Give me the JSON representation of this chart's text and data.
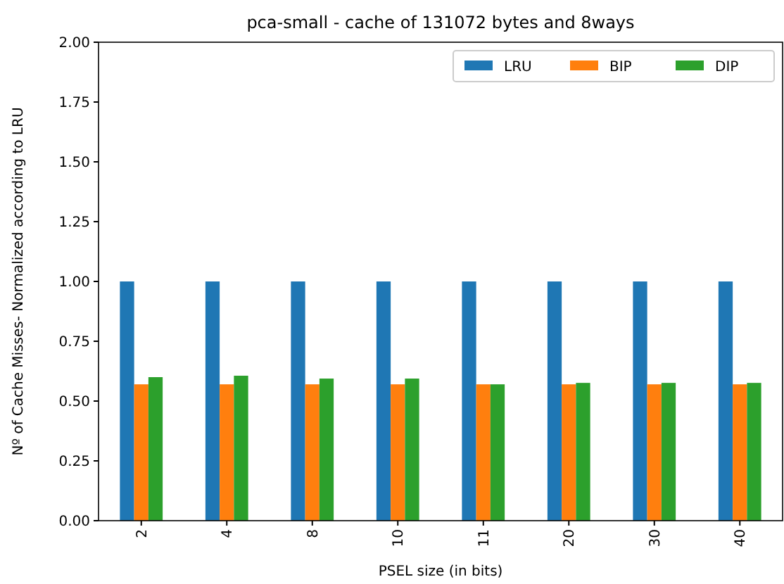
{
  "chart_data": {
    "type": "bar",
    "title": "pca-small - cache of 131072 bytes and 8ways",
    "xlabel": "PSEL size (in bits)",
    "ylabel": "Nº of Cache Misses- Normalized according to LRU",
    "categories": [
      "2",
      "4",
      "8",
      "10",
      "11",
      "20",
      "30",
      "40"
    ],
    "series": [
      {
        "name": "LRU",
        "color": "#1f77b4",
        "values": [
          1,
          1,
          1,
          1,
          1,
          1,
          1,
          1
        ]
      },
      {
        "name": "BIP",
        "color": "#ff7f0e",
        "values": [
          0.57,
          0.57,
          0.57,
          0.57,
          0.57,
          0.57,
          0.57,
          0.57
        ]
      },
      {
        "name": "DIP",
        "color": "#2ca02c",
        "values": [
          0.6,
          0.606,
          0.594,
          0.594,
          0.57,
          0.576,
          0.576,
          0.576
        ]
      }
    ],
    "ylim": [
      0,
      2
    ],
    "yticks": [
      {
        "value": 0,
        "label": "0.00"
      },
      {
        "value": 0.25,
        "label": "0.25"
      },
      {
        "value": 0.5,
        "label": "0.50"
      },
      {
        "value": 0.75,
        "label": "0.75"
      },
      {
        "value": 1,
        "label": "1.00"
      },
      {
        "value": 1.25,
        "label": "1.25"
      },
      {
        "value": 1.5,
        "label": "1.50"
      },
      {
        "value": 1.75,
        "label": "1.75"
      },
      {
        "value": 2,
        "label": "2.00"
      }
    ],
    "grid": false,
    "legend": "top right"
  }
}
